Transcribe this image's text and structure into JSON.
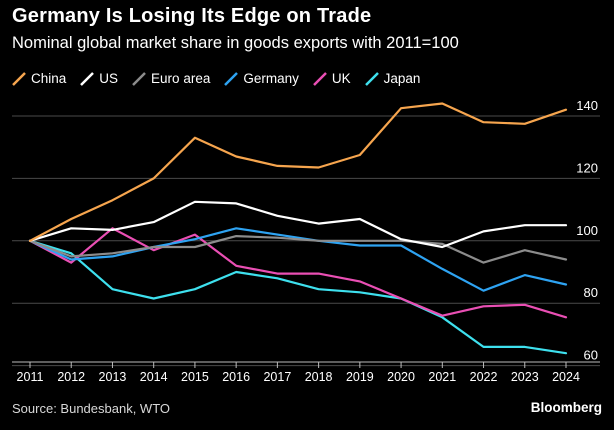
{
  "chart_data": {
    "type": "line",
    "title": "Germany Is Losing Its Edge on Trade",
    "subtitle": "Nominal global market share in goods exports with 2011=100",
    "xlabel": "",
    "ylabel": "",
    "x": [
      "2011",
      "2012",
      "2013",
      "2014",
      "2015",
      "2016",
      "2017",
      "2018",
      "2019",
      "2020",
      "2021",
      "2022",
      "2023",
      "2024"
    ],
    "ylim": [
      57,
      148
    ],
    "yticks": [
      60,
      80,
      100,
      120,
      140
    ],
    "grid": true,
    "legend_position": "top-left",
    "series": [
      {
        "name": "China",
        "color": "#f6a54e",
        "values": [
          100,
          107,
          113,
          120,
          133,
          127,
          124,
          123.5,
          127.5,
          142.5,
          144,
          138,
          137.5,
          142
        ]
      },
      {
        "name": "US",
        "color": "#ffffff",
        "values": [
          100,
          104,
          103.5,
          106,
          112.5,
          112,
          108,
          105.5,
          107,
          100.5,
          98,
          103,
          105,
          105
        ]
      },
      {
        "name": "Euro area",
        "color": "#8c8c8c",
        "values": [
          100,
          95,
          96,
          98,
          98,
          101.5,
          101,
          100,
          100,
          100,
          99,
          93,
          97,
          94
        ]
      },
      {
        "name": "Germany",
        "color": "#2ea3f2",
        "values": [
          100,
          94,
          95,
          98,
          100.5,
          104,
          102,
          100,
          98.5,
          98.5,
          91,
          84,
          89,
          86
        ]
      },
      {
        "name": "UK",
        "color": "#ea4fb4",
        "values": [
          100,
          93,
          104,
          97,
          102,
          92,
          89.5,
          89.5,
          87,
          81.5,
          76,
          79,
          79.5,
          75.5
        ]
      },
      {
        "name": "Japan",
        "color": "#3ee0ee",
        "values": [
          100,
          96,
          84.5,
          81.5,
          84.5,
          90,
          88,
          84.5,
          83.5,
          81.5,
          75.5,
          66,
          66,
          64
        ]
      }
    ]
  },
  "source": "Source: Bundesbank, WTO",
  "brand": "Bloomberg"
}
